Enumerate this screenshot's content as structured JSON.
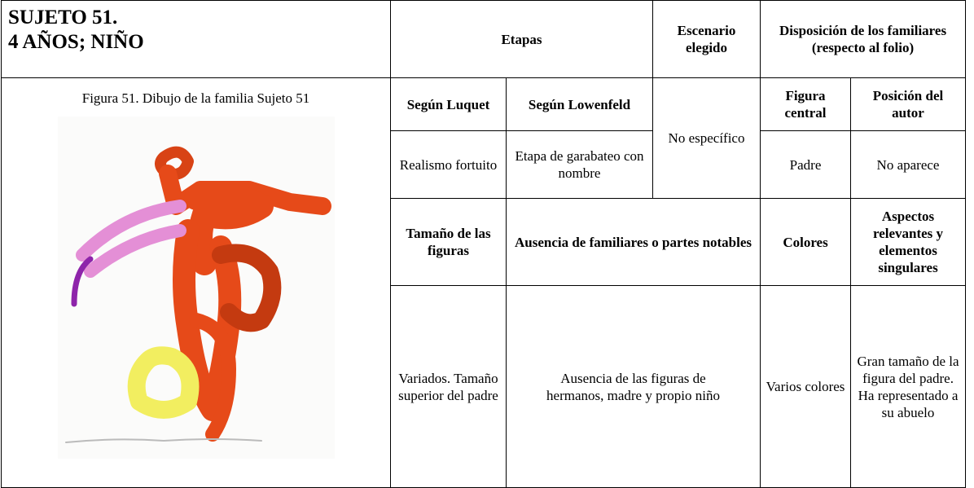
{
  "header": {
    "title_lines": [
      "SUJETO 51.",
      "4 AÑOS; NIÑO"
    ],
    "etapas": "Etapas",
    "escenario": "Escenario elegido",
    "disposicion_lines": [
      "Disposición de los familiares",
      "(respecto al folio)"
    ]
  },
  "figure": {
    "caption": "Figura 51. Dibujo de la familia Sujeto 51"
  },
  "table": {
    "subheaders": [
      "Según Luquet",
      "Según Lowenfeld",
      "Figura central",
      "Posición del autor"
    ],
    "row1": {
      "luquet": "Realismo fortuito",
      "lowenfeld": "Etapa de garabateo con nombre",
      "escenario": "No específico",
      "figura_central": "Padre",
      "posicion_autor": "No aparece"
    },
    "headers2": [
      "Tamaño de las figuras",
      "Ausencia de familiares o partes notables",
      "Colores",
      "Aspectos relevantes y elementos singulares"
    ],
    "row2": [
      "Variados. Tamaño superior del padre",
      "Ausencia de las figuras de hermanos, madre y propio niño",
      "Varios colores",
      "Gran tamaño de la figura del padre. Ha representado a su abuelo"
    ]
  }
}
